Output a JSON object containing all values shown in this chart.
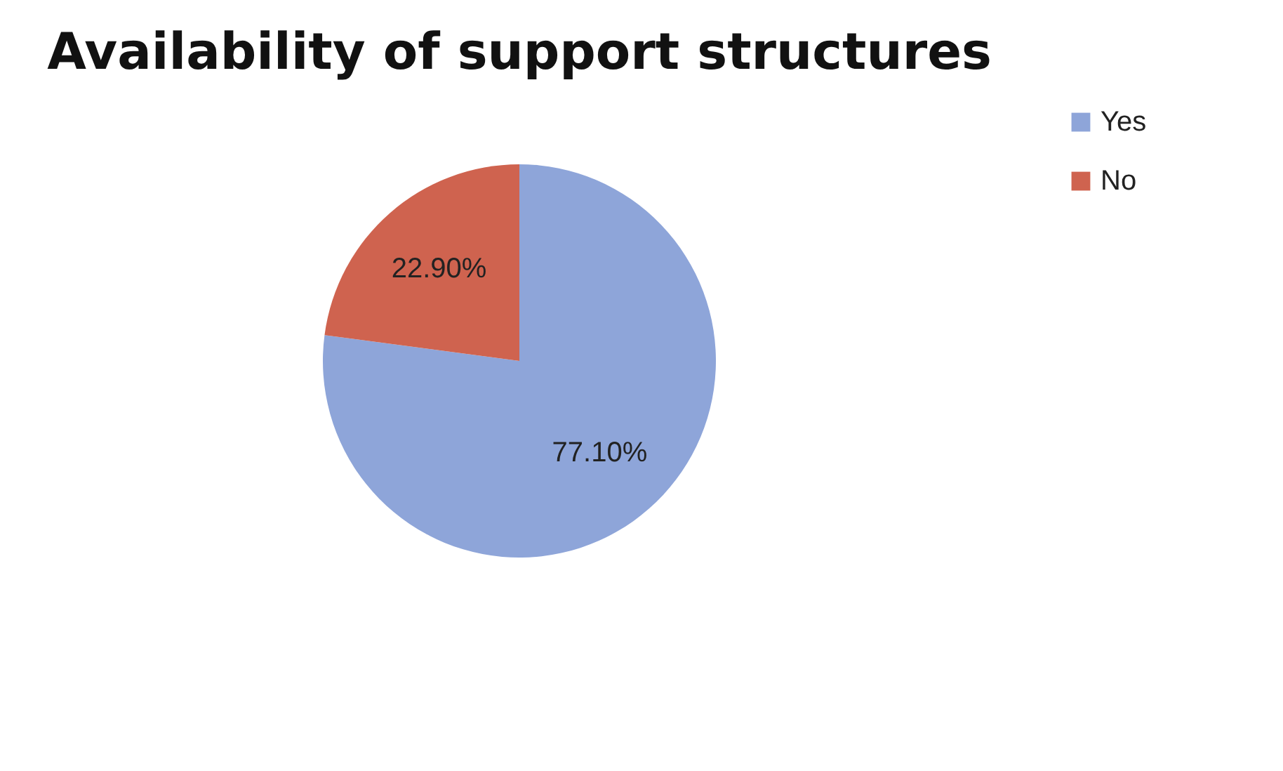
{
  "chart_data": {
    "type": "pie",
    "title": "Availability of support structures",
    "categories": [
      "Yes",
      "No"
    ],
    "values": [
      77.1,
      22.9
    ],
    "colors": [
      "#8ea5d9",
      "#cf634f"
    ],
    "value_labels": [
      "77.10%",
      "22.90%"
    ],
    "legend": "right"
  }
}
